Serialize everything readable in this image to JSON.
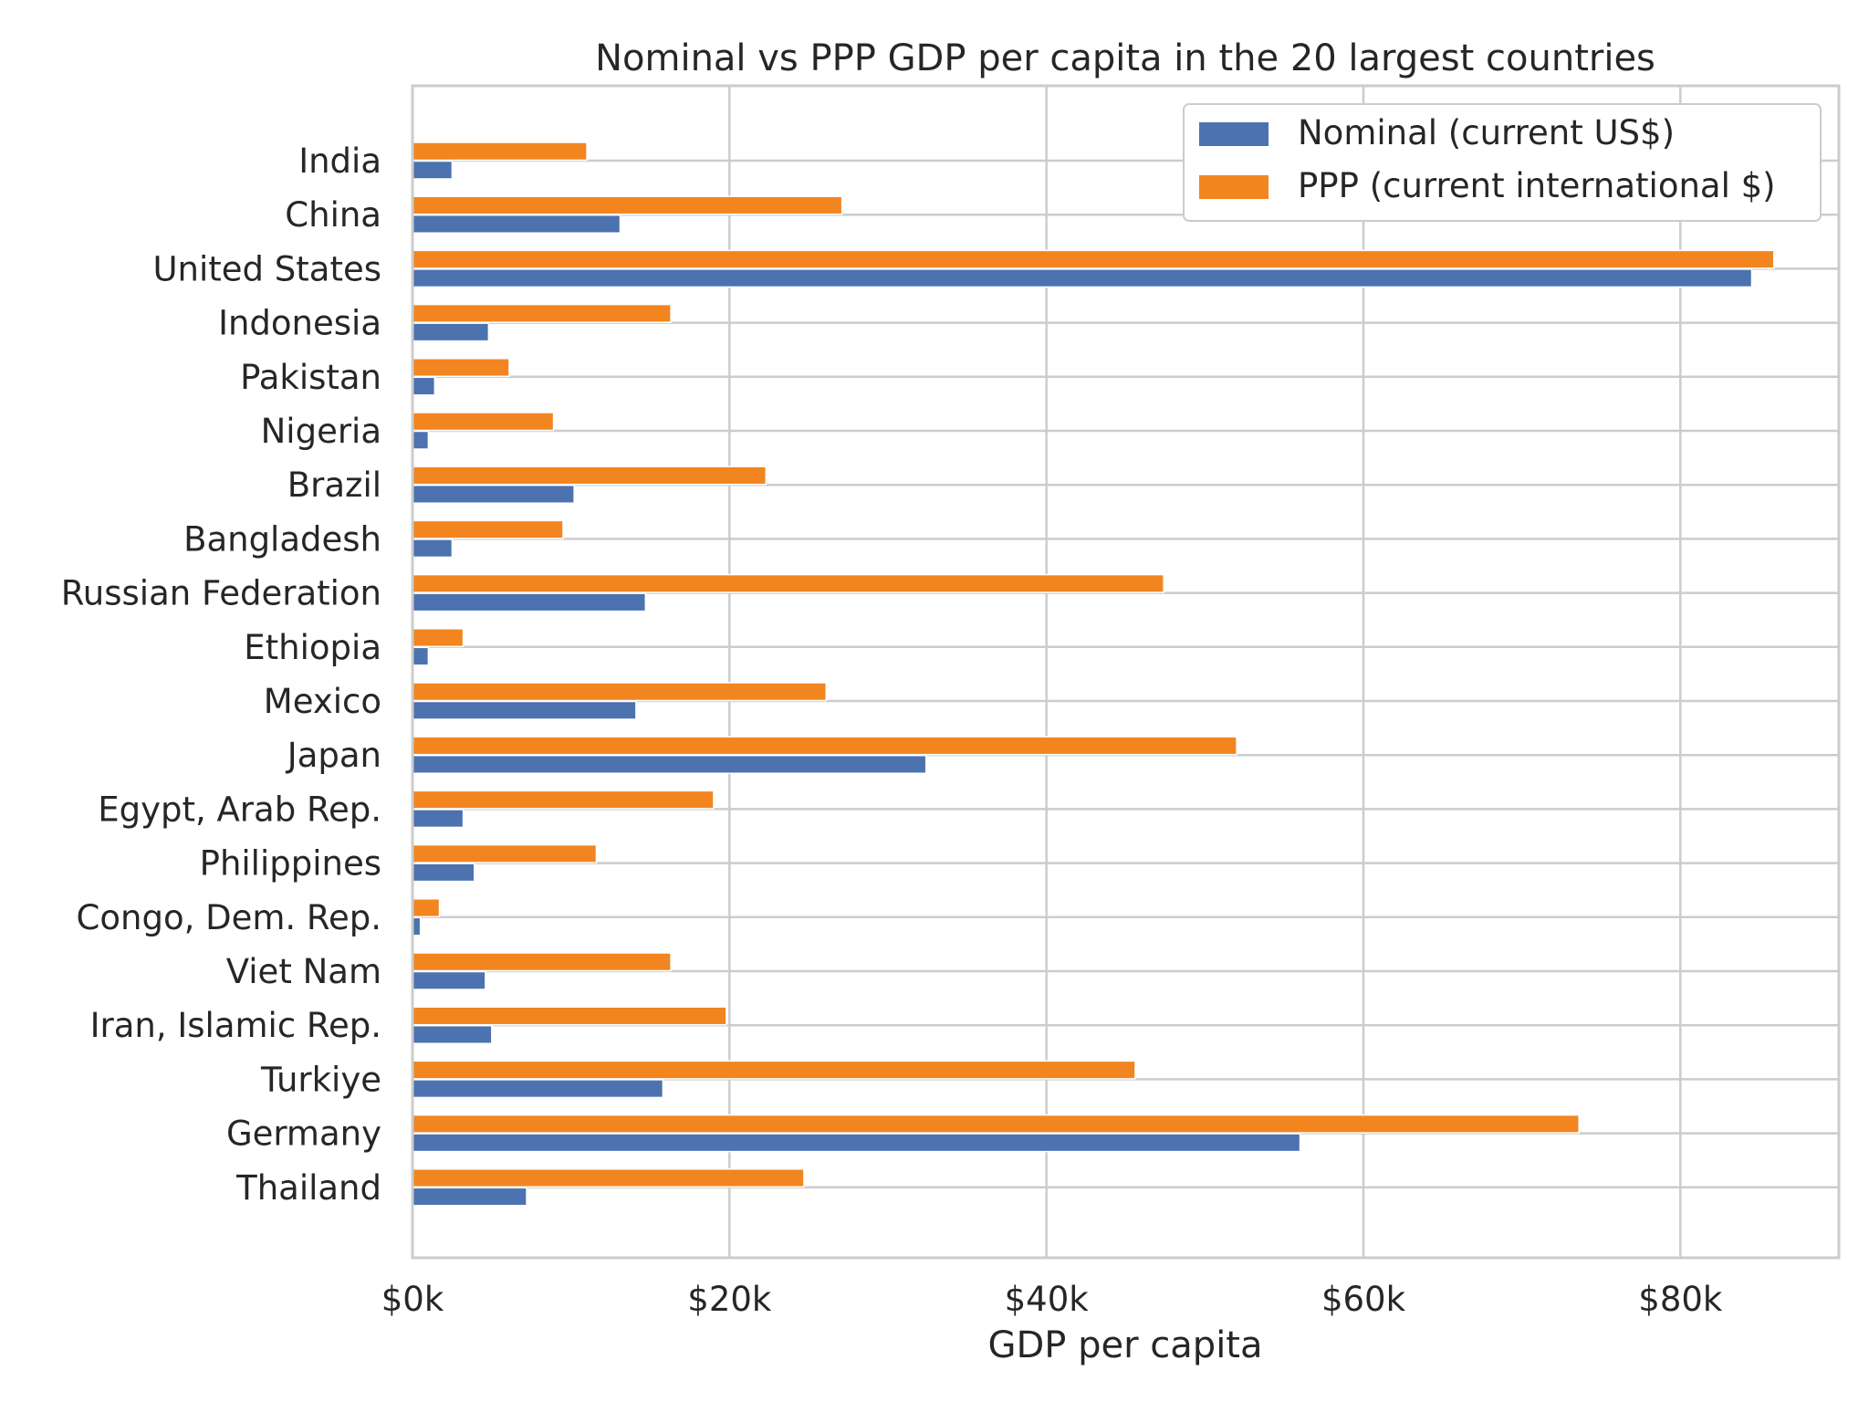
{
  "chart_data": {
    "type": "bar",
    "orientation": "horizontal",
    "title": "Nominal vs PPP GDP per capita in the 20 largest countries",
    "xlabel": "GDP per capita",
    "ylabel": "",
    "xlim": [
      0,
      90000
    ],
    "xticks": [
      0,
      20000,
      40000,
      60000,
      80000
    ],
    "xtick_labels": [
      "$0k",
      "$20k",
      "$40k",
      "$60k",
      "$80k"
    ],
    "grid": true,
    "legend_position": "top-right",
    "categories": [
      "India",
      "China",
      "United States",
      "Indonesia",
      "Pakistan",
      "Nigeria",
      "Brazil",
      "Bangladesh",
      "Russian Federation",
      "Ethiopia",
      "Mexico",
      "Japan",
      "Egypt, Arab Rep.",
      "Philippines",
      "Congo, Dem. Rep.",
      "Viet Nam",
      "Iran, Islamic Rep.",
      "Turkiye",
      "Germany",
      "Thailand"
    ],
    "series": [
      {
        "name": "Nominal (current US$)",
        "color": "#4c72b0",
        "values": [
          2500,
          13100,
          84500,
          4800,
          1400,
          1000,
          10200,
          2500,
          14700,
          1000,
          14100,
          32400,
          3200,
          3900,
          500,
          4600,
          5000,
          15800,
          56000,
          7200
        ]
      },
      {
        "name": "PPP (current international $)",
        "color": "#f28520",
        "values": [
          11000,
          27100,
          85900,
          16300,
          6100,
          8900,
          22300,
          9500,
          47400,
          3200,
          26100,
          52000,
          19000,
          11600,
          1700,
          16300,
          19800,
          45600,
          73600,
          24700
        ]
      }
    ]
  }
}
